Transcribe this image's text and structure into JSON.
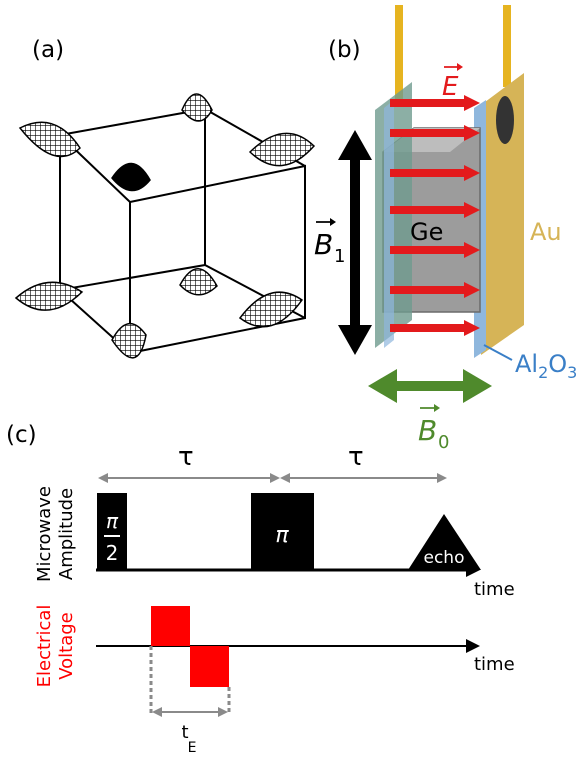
{
  "panel_a": {
    "label": "(a)"
  },
  "panel_b": {
    "label": "(b)",
    "e_field": "E",
    "b1_symbol": "B",
    "b1_sub": "1",
    "b0_symbol": "B",
    "b0_sub": "0",
    "ge": "Ge",
    "au": "Au",
    "al2o3_a": "Al",
    "al2o3_sub2": "2",
    "al2o3_o": "O",
    "al2o3_sub3": "3",
    "colors": {
      "e_arrow": "#e31a1c",
      "b0_arrow": "#4f8a2c",
      "gold": "#d6b457",
      "oxide": "#8fb7dd",
      "ge_block": "#9c9c9c"
    }
  },
  "panel_c": {
    "label": "(c)",
    "tau_left": "τ",
    "tau_right": "τ",
    "y_microwave_1": "Microwave",
    "y_microwave_2": "Amplitude",
    "pulse1_num": "π",
    "pulse1_den": "2",
    "pulse2": "π",
    "echo": "echo",
    "time_top": "time",
    "y_voltage_1": "Electrical",
    "y_voltage_2": "Voltage",
    "time_bottom": "time",
    "te_t": "t",
    "te_sub": "E",
    "colors": {
      "voltage": "#ff0000",
      "arrow": "#8a8a8a"
    }
  }
}
